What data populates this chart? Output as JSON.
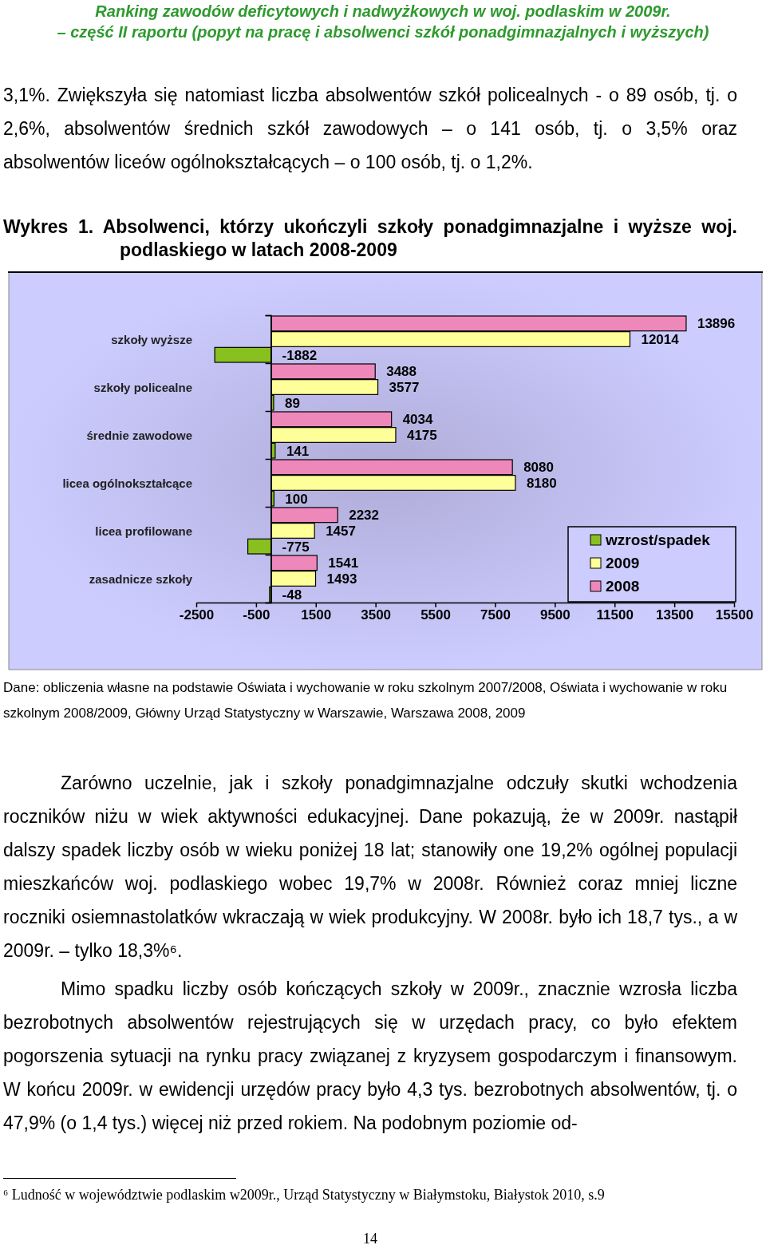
{
  "chart_data": {
    "type": "bar",
    "orientation": "horizontal",
    "title": "Wykres 1. Absolwenci, którzy ukończyli szkoły ponadgimnazjalne i wyższe woj. podlaskiego w latach 2008-2009",
    "categories": [
      "szkoły wyższe",
      "szkoły policealne",
      "średnie zawodowe",
      "licea ogólnokształcące",
      "licea profilowane",
      "zasadnicze szkoły"
    ],
    "series": [
      {
        "name": "2008",
        "color": "#ee88bb",
        "values": [
          13896,
          3488,
          4034,
          8080,
          2232,
          1541
        ]
      },
      {
        "name": "2009",
        "color": "#ffff99",
        "values": [
          12014,
          3577,
          4175,
          8180,
          1457,
          1493
        ]
      },
      {
        "name": "wzrost/spadek",
        "color": "#88c020",
        "values": [
          -1882,
          89,
          141,
          100,
          -775,
          -48
        ]
      }
    ],
    "xlim": [
      -2500,
      15500
    ],
    "xticks": [
      -2500,
      -500,
      1500,
      3500,
      5500,
      7500,
      9500,
      11500,
      13500,
      15500
    ],
    "data_labels": true,
    "legend": "bottom right",
    "grid": false,
    "annotations": [
      "Ranking zawodów deficytowych i nadwyżkowych w woj. podlaskim w 2009r.",
      "– część II raportu (popyt na pracę i absolwenci szkół ponadgimnazjalnych i wyższych)",
      "3,1%. Zwiększyła się natomiast liczba absolwentów szkół policealnych  - o 89 osób, tj. o 2,6%, absolwentów średnich szkół zawodowych – o 141 osób, tj. o 3,5% oraz absolwentów liceów ogólnokształcących – o 100 osób, tj. o 1,2%.",
      "Dane: obliczenia własne na podstawie Oświata i wychowanie w roku szkolnym 2007/2008, Oświata i wychowanie w roku szkolnym 2008/2009, Główny Urząd Statystyczny w Warszawie, Warszawa 2008, 2009",
      "Zarówno uczelnie, jak i szkoły ponadgimnazjalne odczuły skutki wchodzenia roczników niżu w wiek aktywności edukacyjnej. Dane pokazują, że w 2009r. nastąpił dalszy spadek liczby osób w wieku poniżej 18 lat; stanowiły one 19,2% ogólnej populacji mieszkańców woj. podlaskiego wobec 19,7% w 2008r. Również coraz mniej liczne roczniki osiemnastolatków wkraczają w wiek produkcyjny. W 2008r. było ich 18,7 tys., a w 2009r. – tylko 18,3%⁶.",
      "Mimo spadku liczby osób kończących szkoły w 2009r., znacznie wzrosła liczba bezrobotnych absolwentów rejestrujących się w urzędach pracy, co było efektem pogorszenia sytuacji na rynku pracy związanej z kryzysem gospodarczym i finansowym. W końcu 2009r. w ewidencji urzędów pracy było 4,3 tys. bezrobotnych absolwentów, tj. o 47,9% (o 1,4 tys.) więcej niż przed rokiem. Na podobnym poziomie od-",
      "⁶ Ludność w województwie podlaskim  w2009r., Urząd Statystyczny w Białymstoku, Białystok 2010, s.9",
      "14"
    ]
  }
}
